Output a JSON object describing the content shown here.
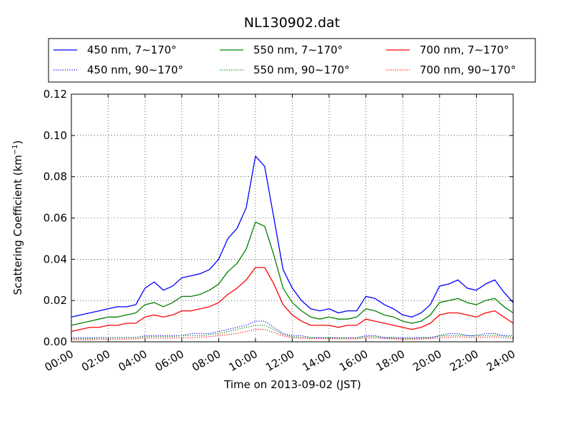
{
  "chart_data": {
    "type": "line",
    "title": "NL130902.dat",
    "xlabel": "Time on 2013-09-02 (JST)",
    "ylabel_main": "Scattering Coefficient (km",
    "ylabel_sup": "−1",
    "ylabel_end": ")",
    "xlim": [
      "00:00",
      "24:00"
    ],
    "ylim": [
      0,
      0.12
    ],
    "grid": true,
    "legend_position": "top, above plot",
    "xticks": [
      "00:00",
      "02:00",
      "04:00",
      "06:00",
      "08:00",
      "10:00",
      "12:00",
      "14:00",
      "16:00",
      "18:00",
      "20:00",
      "22:00",
      "24:00"
    ],
    "yticks": [
      "0.00",
      "0.02",
      "0.04",
      "0.06",
      "0.08",
      "0.10",
      "0.12"
    ],
    "x_hours": [
      0,
      0.5,
      1,
      1.5,
      2,
      2.5,
      3,
      3.5,
      4,
      4.5,
      5,
      5.5,
      6,
      6.5,
      7,
      7.5,
      8,
      8.5,
      9,
      9.5,
      10,
      10.5,
      11,
      11.5,
      12,
      12.5,
      13,
      13.5,
      14,
      14.5,
      15,
      15.5,
      16,
      16.5,
      17,
      17.5,
      18,
      18.5,
      19,
      19.5,
      20,
      20.5,
      21,
      21.5,
      22,
      22.5,
      23,
      23.5,
      24
    ],
    "series": [
      {
        "name": "450 nm, 7∼170°",
        "color": "#0000ff",
        "style": "solid",
        "values": [
          0.012,
          0.013,
          0.014,
          0.015,
          0.016,
          0.017,
          0.017,
          0.018,
          0.026,
          0.029,
          0.025,
          0.027,
          0.031,
          0.032,
          0.033,
          0.035,
          0.04,
          0.05,
          0.055,
          0.065,
          0.09,
          0.085,
          0.06,
          0.035,
          0.026,
          0.02,
          0.016,
          0.015,
          0.016,
          0.014,
          0.015,
          0.015,
          0.022,
          0.021,
          0.018,
          0.016,
          0.013,
          0.012,
          0.014,
          0.018,
          0.027,
          0.028,
          0.03,
          0.026,
          0.025,
          0.028,
          0.03,
          0.024,
          0.019
        ]
      },
      {
        "name": "550 nm, 7∼170°",
        "color": "#008000",
        "style": "solid",
        "values": [
          0.008,
          0.009,
          0.01,
          0.011,
          0.012,
          0.012,
          0.013,
          0.014,
          0.018,
          0.019,
          0.017,
          0.019,
          0.022,
          0.022,
          0.023,
          0.025,
          0.028,
          0.034,
          0.038,
          0.045,
          0.058,
          0.056,
          0.042,
          0.026,
          0.019,
          0.015,
          0.012,
          0.011,
          0.012,
          0.011,
          0.011,
          0.012,
          0.016,
          0.015,
          0.013,
          0.012,
          0.01,
          0.009,
          0.01,
          0.013,
          0.019,
          0.02,
          0.021,
          0.019,
          0.018,
          0.02,
          0.021,
          0.017,
          0.014
        ]
      },
      {
        "name": "700 nm, 7∼170°",
        "color": "#ff0000",
        "style": "solid",
        "values": [
          0.005,
          0.006,
          0.007,
          0.007,
          0.008,
          0.008,
          0.009,
          0.009,
          0.012,
          0.013,
          0.012,
          0.013,
          0.015,
          0.015,
          0.016,
          0.017,
          0.019,
          0.023,
          0.026,
          0.03,
          0.036,
          0.036,
          0.028,
          0.018,
          0.013,
          0.01,
          0.008,
          0.008,
          0.008,
          0.007,
          0.008,
          0.008,
          0.011,
          0.01,
          0.009,
          0.008,
          0.007,
          0.006,
          0.007,
          0.009,
          0.013,
          0.014,
          0.014,
          0.013,
          0.012,
          0.014,
          0.015,
          0.012,
          0.009
        ]
      },
      {
        "name": "450 nm, 90∼170°",
        "color": "#0000ff",
        "style": "dotted",
        "values": [
          0.002,
          0.002,
          0.002,
          0.002,
          0.002,
          0.002,
          0.002,
          0.002,
          0.003,
          0.003,
          0.003,
          0.003,
          0.003,
          0.004,
          0.004,
          0.004,
          0.005,
          0.006,
          0.007,
          0.008,
          0.01,
          0.01,
          0.007,
          0.004,
          0.003,
          0.003,
          0.002,
          0.002,
          0.002,
          0.002,
          0.002,
          0.002,
          0.003,
          0.003,
          0.002,
          0.002,
          0.002,
          0.002,
          0.002,
          0.002,
          0.003,
          0.004,
          0.004,
          0.003,
          0.003,
          0.004,
          0.004,
          0.003,
          0.003
        ]
      },
      {
        "name": "550 nm, 90∼170°",
        "color": "#008000",
        "style": "dotted",
        "values": [
          0.0015,
          0.0015,
          0.0015,
          0.0018,
          0.0018,
          0.002,
          0.002,
          0.002,
          0.0025,
          0.0025,
          0.0025,
          0.0025,
          0.003,
          0.003,
          0.003,
          0.0035,
          0.004,
          0.005,
          0.006,
          0.007,
          0.008,
          0.008,
          0.006,
          0.0035,
          0.0025,
          0.0022,
          0.002,
          0.002,
          0.002,
          0.0018,
          0.0018,
          0.0018,
          0.0025,
          0.0025,
          0.002,
          0.0018,
          0.0015,
          0.0015,
          0.0018,
          0.002,
          0.0028,
          0.003,
          0.0032,
          0.003,
          0.0028,
          0.003,
          0.0032,
          0.0028,
          0.0022
        ]
      },
      {
        "name": "700 nm, 90∼170°",
        "color": "#ff0000",
        "style": "dotted",
        "values": [
          0.001,
          0.001,
          0.001,
          0.0012,
          0.0012,
          0.0013,
          0.0013,
          0.0014,
          0.0018,
          0.0018,
          0.0018,
          0.0018,
          0.002,
          0.002,
          0.0022,
          0.0025,
          0.003,
          0.0035,
          0.004,
          0.005,
          0.006,
          0.006,
          0.0045,
          0.0028,
          0.002,
          0.0017,
          0.0015,
          0.0015,
          0.0015,
          0.0014,
          0.0014,
          0.0014,
          0.0018,
          0.0018,
          0.0015,
          0.0014,
          0.0012,
          0.0012,
          0.0013,
          0.0015,
          0.002,
          0.0022,
          0.0024,
          0.0022,
          0.002,
          0.0022,
          0.0024,
          0.002,
          0.0016
        ]
      }
    ]
  }
}
